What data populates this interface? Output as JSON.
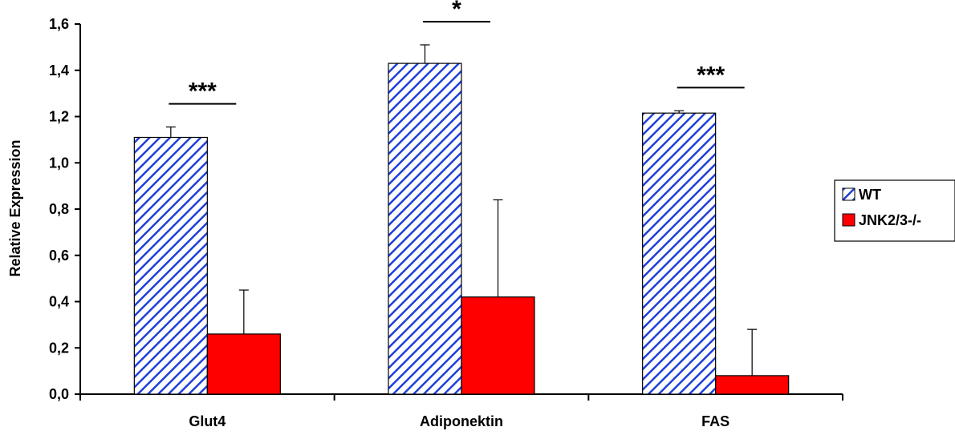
{
  "chart_data": {
    "type": "bar",
    "ylabel": "Relative Expression",
    "xlabel": "",
    "ylim": [
      0,
      1.6
    ],
    "yticks": [
      0.0,
      0.2,
      0.4,
      0.6,
      0.8,
      1.0,
      1.2,
      1.4,
      1.6
    ],
    "ytick_labels": [
      "0,0",
      "0,2",
      "0,4",
      "0,6",
      "0,8",
      "1,0",
      "1,2",
      "1,4",
      "1,6"
    ],
    "categories": [
      "Glut4",
      "Adiponektin",
      "FAS"
    ],
    "series": [
      {
        "name": "WT",
        "values": [
          1.11,
          1.43,
          1.215
        ],
        "errors": [
          0.045,
          0.08,
          0.01
        ],
        "color": "#1f3fd8",
        "fill": "diagonal-hatch"
      },
      {
        "name": "JNK2/3-/-",
        "values": [
          0.26,
          0.42,
          0.08
        ],
        "errors": [
          0.19,
          0.42,
          0.2
        ],
        "color": "#ff0000",
        "fill": "solid"
      }
    ],
    "significance": [
      "***",
      "*",
      "***"
    ],
    "legend": {
      "placement": "right"
    },
    "grid": false
  }
}
